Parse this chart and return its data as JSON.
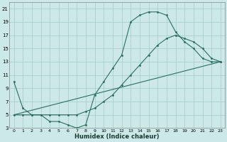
{
  "xlabel": "Humidex (Indice chaleur)",
  "bg_color": "#cce8e8",
  "grid_color": "#aacfcf",
  "line_color": "#2a7060",
  "xlim": [
    -0.5,
    23.5
  ],
  "ylim": [
    3,
    22
  ],
  "xticks": [
    0,
    1,
    2,
    3,
    4,
    5,
    6,
    7,
    8,
    9,
    10,
    11,
    12,
    13,
    14,
    15,
    16,
    17,
    18,
    19,
    20,
    21,
    22,
    23
  ],
  "yticks": [
    3,
    5,
    7,
    9,
    11,
    13,
    15,
    17,
    19,
    21
  ],
  "line1_x": [
    0,
    1,
    2,
    3,
    4,
    5,
    6,
    7,
    8,
    9,
    10,
    11,
    12,
    13,
    14,
    15,
    16,
    17,
    18,
    19,
    20,
    21,
    22,
    23
  ],
  "line1_y": [
    10,
    6,
    5,
    5,
    4,
    4,
    3.5,
    3,
    3.5,
    8,
    10,
    12,
    14,
    19,
    20,
    20.5,
    20.5,
    20,
    17.5,
    16,
    15,
    13.5,
    13,
    13
  ],
  "line2_x": [
    0,
    23
  ],
  "line2_y": [
    5,
    13
  ],
  "line3_x": [
    0,
    1,
    2,
    3,
    4,
    5,
    6,
    7,
    8,
    9,
    10,
    11,
    12,
    13,
    14,
    15,
    16,
    17,
    18,
    19,
    20,
    21,
    22,
    23
  ],
  "line3_y": [
    5,
    5,
    5,
    5,
    5,
    5,
    5,
    5,
    5.5,
    6,
    7,
    8,
    9.5,
    11,
    12.5,
    14,
    15.5,
    16.5,
    17,
    16.5,
    16,
    15,
    13.5,
    13
  ]
}
